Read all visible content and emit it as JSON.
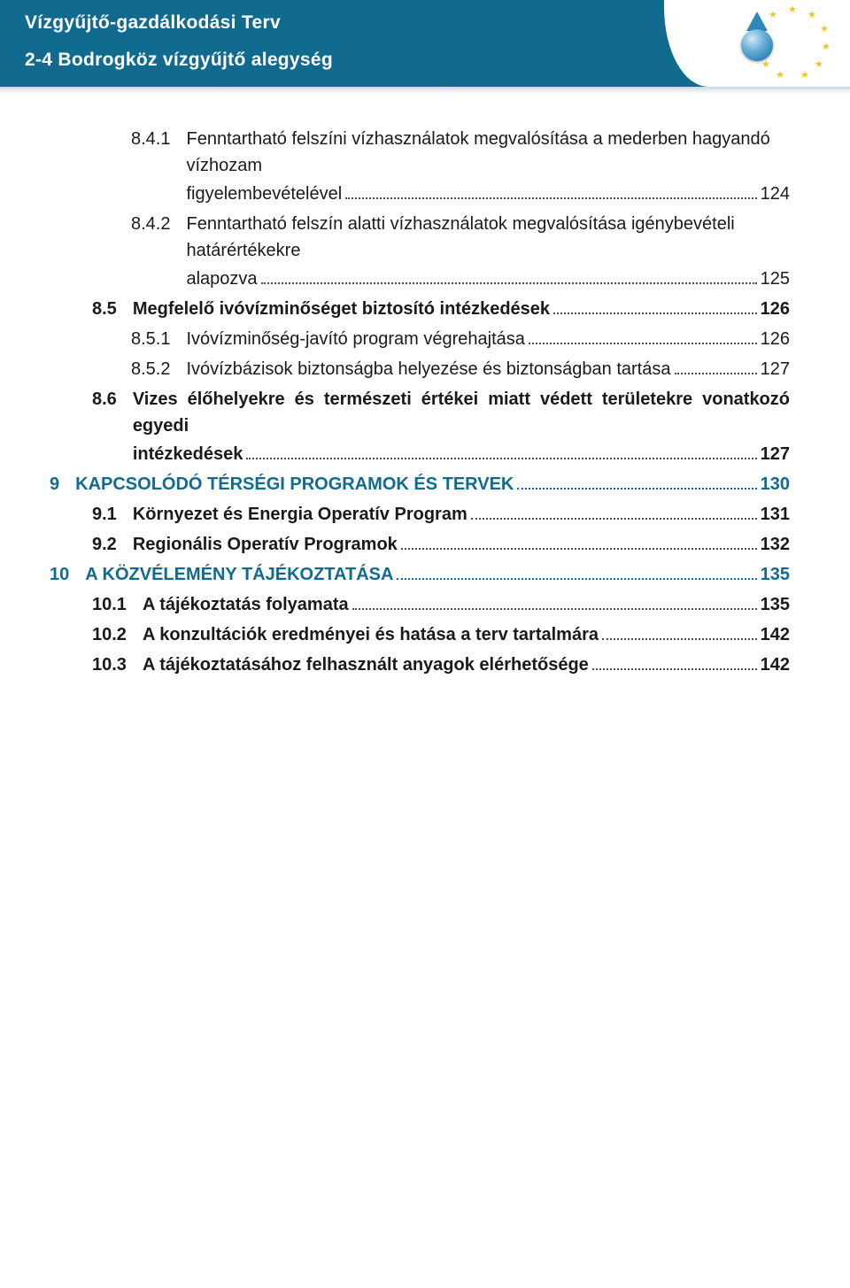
{
  "header": {
    "title": "Vízgyűjtő-gazdálkodási Terv",
    "subtitle": "2-4 Bodrogköz vízgyűjtő alegység"
  },
  "colors": {
    "header_bg": "#106b8e",
    "chapter_color": "#106b8e",
    "text_color": "#1a1a1a",
    "star_color": "#f5c518"
  },
  "toc": [
    {
      "level": 2,
      "num": "8.4.1",
      "bold": false,
      "pre": "Fenntartható felszíni vízhasználatok megvalósítása a mederben hagyandó vízhozam",
      "last": "figyelembevételével",
      "page": "124"
    },
    {
      "level": 2,
      "num": "8.4.2",
      "bold": false,
      "pre": "Fenntartható felszín alatti vízhasználatok megvalósítása igénybevételi határértékekre",
      "last": "alapozva",
      "page": "125"
    },
    {
      "level": 1,
      "num": "8.5",
      "bold": true,
      "last": "Megfelelő ivóvízminőséget biztosító intézkedések",
      "page": "126"
    },
    {
      "level": 2,
      "num": "8.5.1",
      "bold": false,
      "last": "Ivóvízminőség-javító program végrehajtása",
      "page": "126"
    },
    {
      "level": 2,
      "num": "8.5.2",
      "bold": false,
      "last": "Ivóvízbázisok biztonságba helyezése és biztonságban tartása",
      "page": "127"
    },
    {
      "level": 1,
      "num": "8.6",
      "bold": true,
      "pre": "Vizes élőhelyekre és természeti értékei miatt védett területekre vonatkozó egyedi",
      "last": "intézkedések",
      "page": "127"
    },
    {
      "level": 0,
      "num": "9",
      "chapter": true,
      "bold": true,
      "last": "KAPCSOLÓDÓ TÉRSÉGI PROGRAMOK ÉS TERVEK",
      "page": "130"
    },
    {
      "level": 1,
      "num": "9.1",
      "bold": true,
      "last": "Környezet és Energia Operatív Program",
      "page": "131"
    },
    {
      "level": 1,
      "num": "9.2",
      "bold": true,
      "last": "Regionális Operatív Programok",
      "page": "132"
    },
    {
      "level": 0,
      "num": "10",
      "chapter": true,
      "bold": true,
      "last": "A KÖZVÉLEMÉNY TÁJÉKOZTATÁSA",
      "page": "135"
    },
    {
      "level": 1,
      "num": "10.1",
      "bold": true,
      "last": "A tájékoztatás folyamata",
      "page": "135"
    },
    {
      "level": 1,
      "num": "10.2",
      "bold": true,
      "last": "A konzultációk eredményei és hatása a terv tartalmára",
      "page": "142"
    },
    {
      "level": 1,
      "num": "10.3",
      "bold": true,
      "last": "A tájékoztatásához felhasznált anyagok elérhetősége",
      "page": "142"
    }
  ]
}
